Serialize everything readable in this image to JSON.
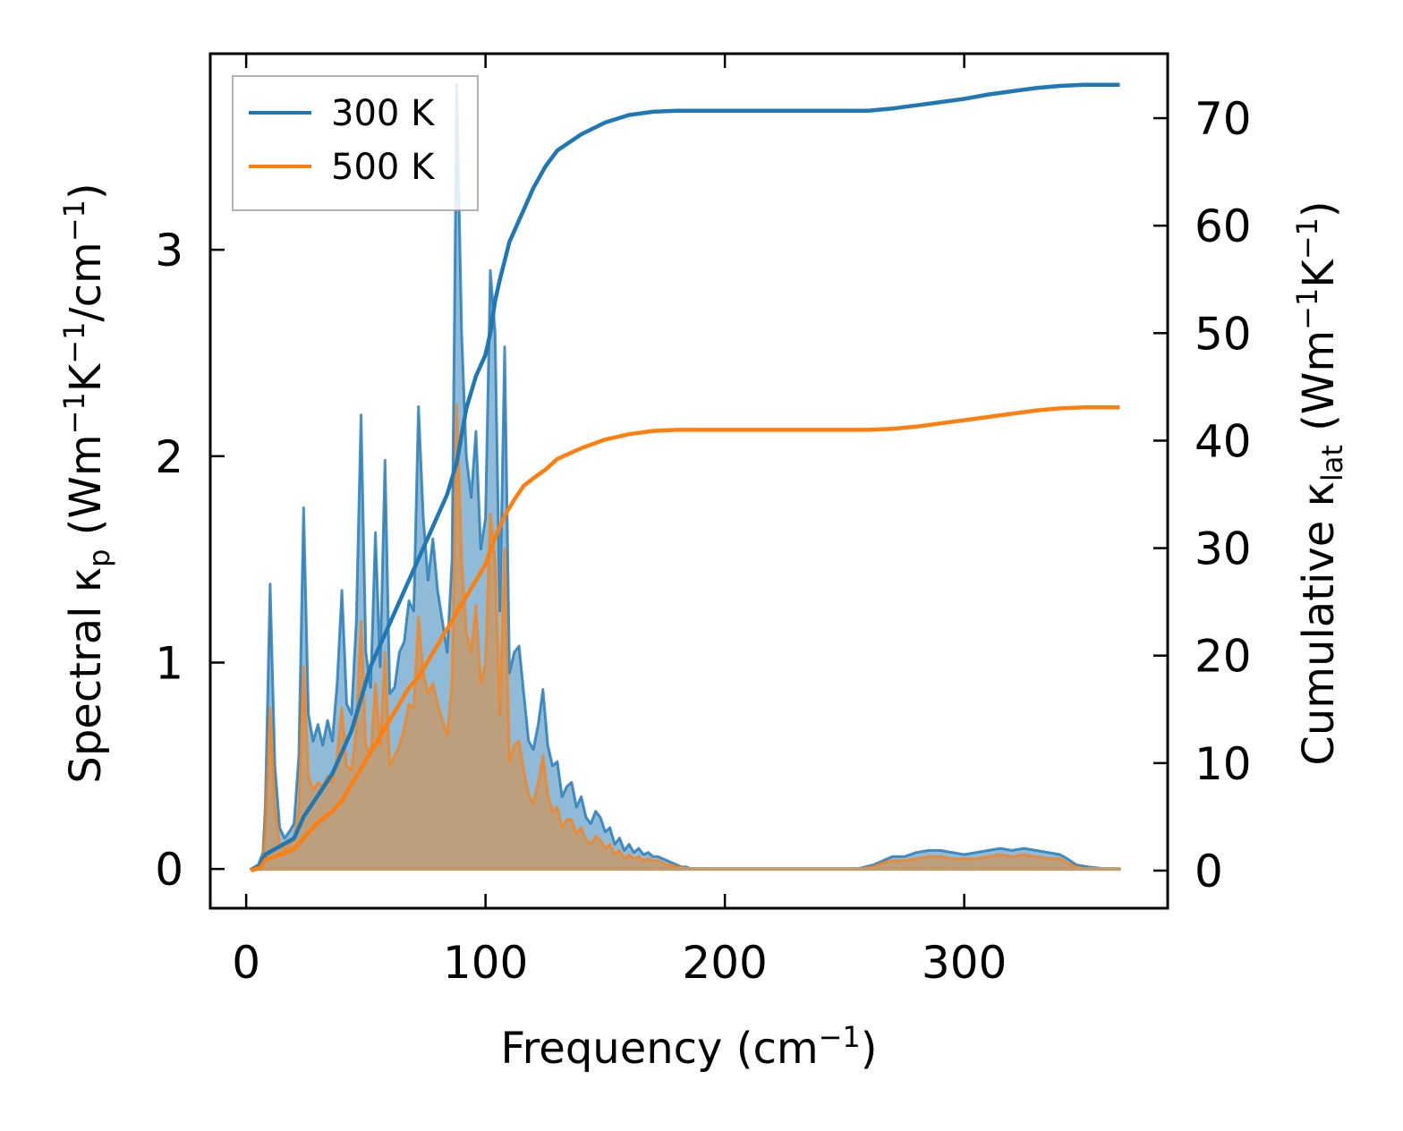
{
  "chart_data": {
    "type": "line",
    "xlabel": "Frequency (cm",
    "xlabel_sup": "−1",
    "xlabel_end": ")",
    "ylabel_left": {
      "pre": "Spectral κ",
      "sub_p": "p",
      "mid1": " (Wm",
      "sup1": "−1",
      "mid2": "K",
      "sup2": "−1",
      "mid3": "/cm",
      "sup3": "−1",
      "end": ")"
    },
    "ylabel_right": {
      "pre": "Cumulative κ",
      "sub_lat": "lat",
      "mid1": " (Wm",
      "sup1": "−1",
      "mid2": "K",
      "sup2": "−1",
      "end": ")"
    },
    "xlim": [
      -15,
      385
    ],
    "ylim_left": [
      -0.19,
      3.95
    ],
    "ylim_right": [
      -3.5,
      76
    ],
    "xticks": [
      0,
      100,
      200,
      300
    ],
    "yticks_left": [
      0,
      1,
      2,
      3
    ],
    "yticks_right": [
      0,
      10,
      20,
      30,
      40,
      50,
      60,
      70
    ],
    "legend_position": "top-left",
    "grid": false,
    "colors": {
      "300 K": "#1f77b4",
      "500 K": "#ff7f0e",
      "overlap": "#c49a6c"
    },
    "series": [
      {
        "name": "300 K",
        "spectral": {
          "x": [
            2,
            5,
            7,
            8,
            10,
            12,
            14,
            16,
            18,
            20,
            22,
            24,
            26,
            28,
            30,
            32,
            34,
            36,
            38,
            40,
            42,
            44,
            46,
            48,
            50,
            52,
            54,
            56,
            58,
            60,
            62,
            64,
            66,
            68,
            70,
            72,
            74,
            76,
            78,
            80,
            82,
            84,
            86,
            88,
            90,
            92,
            94,
            96,
            98,
            100,
            102,
            104,
            106,
            108,
            110,
            112,
            114,
            116,
            118,
            120,
            122,
            124,
            126,
            128,
            130,
            132,
            134,
            136,
            138,
            140,
            142,
            144,
            146,
            148,
            150,
            152,
            154,
            156,
            158,
            160,
            162,
            164,
            166,
            168,
            170,
            172,
            174,
            176,
            178,
            180,
            182,
            184,
            186,
            190,
            200,
            220,
            240,
            255,
            262,
            266,
            270,
            275,
            280,
            285,
            290,
            295,
            300,
            305,
            310,
            315,
            320,
            325,
            330,
            335,
            340,
            343,
            347,
            352,
            360,
            365
          ],
          "y": [
            0,
            0.02,
            0.08,
            0.3,
            1.38,
            0.5,
            0.2,
            0.15,
            0.18,
            0.22,
            0.55,
            1.75,
            0.75,
            0.62,
            0.7,
            0.6,
            0.72,
            0.62,
            0.9,
            1.35,
            0.8,
            0.75,
            1.2,
            2.2,
            1.05,
            0.88,
            1.63,
            0.98,
            1.98,
            0.85,
            0.88,
            1.05,
            1.1,
            1.3,
            1.25,
            2.24,
            1.7,
            1.4,
            1.6,
            1.35,
            1.2,
            1.05,
            1.5,
            3.8,
            2.6,
            2.0,
            1.8,
            2.12,
            1.55,
            1.7,
            2.9,
            2.6,
            1.25,
            2.53,
            0.95,
            1.05,
            1.08,
            0.85,
            0.62,
            0.58,
            0.7,
            0.87,
            0.6,
            0.5,
            0.52,
            0.35,
            0.4,
            0.42,
            0.3,
            0.35,
            0.25,
            0.22,
            0.28,
            0.25,
            0.18,
            0.2,
            0.12,
            0.15,
            0.09,
            0.12,
            0.08,
            0.1,
            0.07,
            0.08,
            0.06,
            0.06,
            0.05,
            0.04,
            0.03,
            0.02,
            0.01,
            0.01,
            0,
            0,
            0,
            0,
            0,
            0,
            0.02,
            0.04,
            0.06,
            0.06,
            0.08,
            0.09,
            0.09,
            0.08,
            0.07,
            0.08,
            0.09,
            0.1,
            0.09,
            0.1,
            0.09,
            0.08,
            0.07,
            0.05,
            0.02,
            0.01,
            0,
            0
          ]
        },
        "cumulative": {
          "x": [
            2,
            6,
            8,
            12,
            20,
            24,
            30,
            36,
            40,
            44,
            48,
            52,
            56,
            60,
            64,
            68,
            72,
            76,
            80,
            84,
            88,
            92,
            96,
            100,
            102,
            104,
            106,
            110,
            115,
            120,
            125,
            130,
            140,
            150,
            160,
            170,
            180,
            190,
            200,
            220,
            240,
            260,
            270,
            280,
            290,
            300,
            310,
            320,
            330,
            340,
            350,
            365
          ],
          "y": [
            0,
            0.5,
            1.5,
            2,
            3,
            5,
            7,
            9,
            11,
            13,
            16,
            19,
            21,
            23,
            25,
            27,
            29,
            31,
            33,
            35,
            38,
            43,
            46,
            48,
            50,
            53,
            55,
            58.5,
            61,
            63.5,
            65.5,
            67,
            68.5,
            69.6,
            70.3,
            70.6,
            70.7,
            70.7,
            70.7,
            70.7,
            70.7,
            70.7,
            70.9,
            71.2,
            71.5,
            71.8,
            72.2,
            72.5,
            72.8,
            73,
            73.1,
            73.1
          ]
        }
      },
      {
        "name": "500 K",
        "spectral": {
          "x": [
            2,
            5,
            7,
            8,
            10,
            12,
            14,
            16,
            18,
            20,
            22,
            24,
            26,
            28,
            30,
            32,
            34,
            36,
            38,
            40,
            42,
            44,
            46,
            48,
            50,
            52,
            54,
            56,
            58,
            60,
            62,
            64,
            66,
            68,
            70,
            72,
            74,
            76,
            78,
            80,
            82,
            84,
            86,
            88,
            90,
            92,
            94,
            96,
            98,
            100,
            102,
            104,
            106,
            108,
            110,
            112,
            114,
            116,
            118,
            120,
            122,
            124,
            126,
            128,
            130,
            132,
            134,
            136,
            138,
            140,
            142,
            144,
            146,
            148,
            150,
            152,
            154,
            156,
            158,
            160,
            162,
            164,
            166,
            168,
            170,
            172,
            174,
            176,
            178,
            180,
            182,
            184,
            186,
            190,
            200,
            220,
            240,
            255,
            262,
            266,
            270,
            275,
            280,
            285,
            290,
            295,
            300,
            305,
            310,
            315,
            320,
            325,
            330,
            335,
            340,
            343,
            347,
            352,
            360,
            365
          ],
          "y": [
            0,
            0.01,
            0.05,
            0.2,
            0.78,
            0.3,
            0.12,
            0.1,
            0.12,
            0.14,
            0.3,
            0.98,
            0.45,
            0.38,
            0.42,
            0.4,
            0.45,
            0.42,
            0.55,
            0.78,
            0.5,
            0.48,
            0.68,
            1.2,
            0.6,
            0.55,
            0.9,
            0.6,
            1.05,
            0.5,
            0.55,
            0.6,
            0.68,
            0.8,
            0.78,
            1.22,
            0.95,
            0.85,
            0.9,
            0.8,
            0.72,
            0.65,
            0.9,
            2.25,
            1.5,
            1.15,
            1.05,
            1.28,
            0.9,
            1.0,
            1.72,
            1.5,
            0.75,
            1.55,
            0.52,
            0.6,
            0.62,
            0.48,
            0.36,
            0.32,
            0.42,
            0.55,
            0.36,
            0.28,
            0.3,
            0.2,
            0.24,
            0.24,
            0.17,
            0.2,
            0.14,
            0.12,
            0.16,
            0.14,
            0.1,
            0.12,
            0.07,
            0.09,
            0.05,
            0.07,
            0.05,
            0.06,
            0.04,
            0.05,
            0.04,
            0.04,
            0.03,
            0.02,
            0.02,
            0.01,
            0.01,
            0,
            0,
            0,
            0,
            0,
            0,
            0,
            0.01,
            0.03,
            0.04,
            0.04,
            0.05,
            0.06,
            0.06,
            0.05,
            0.05,
            0.05,
            0.06,
            0.07,
            0.06,
            0.07,
            0.06,
            0.05,
            0.05,
            0.03,
            0.01,
            0,
            0,
            0
          ]
        },
        "cumulative": {
          "x": [
            2,
            6,
            8,
            12,
            20,
            24,
            30,
            36,
            40,
            44,
            48,
            52,
            56,
            60,
            64,
            68,
            72,
            76,
            80,
            84,
            88,
            92,
            96,
            100,
            104,
            108,
            112,
            116,
            120,
            125,
            130,
            140,
            150,
            160,
            170,
            180,
            190,
            200,
            220,
            240,
            260,
            270,
            280,
            290,
            300,
            310,
            320,
            330,
            340,
            350,
            365
          ],
          "y": [
            0,
            0.3,
            1,
            1.3,
            2,
            3,
            4.5,
            5.5,
            6.5,
            8,
            9.5,
            11,
            12.5,
            14,
            15.5,
            17,
            18,
            19.5,
            21,
            22.5,
            24,
            25.5,
            27,
            28.5,
            31,
            33,
            34.5,
            35.8,
            36.5,
            37.3,
            38.3,
            39.3,
            40.1,
            40.6,
            40.9,
            41,
            41,
            41,
            41,
            41,
            41,
            41.1,
            41.3,
            41.6,
            41.9,
            42.2,
            42.5,
            42.8,
            43,
            43.1,
            43.1
          ]
        }
      }
    ]
  }
}
